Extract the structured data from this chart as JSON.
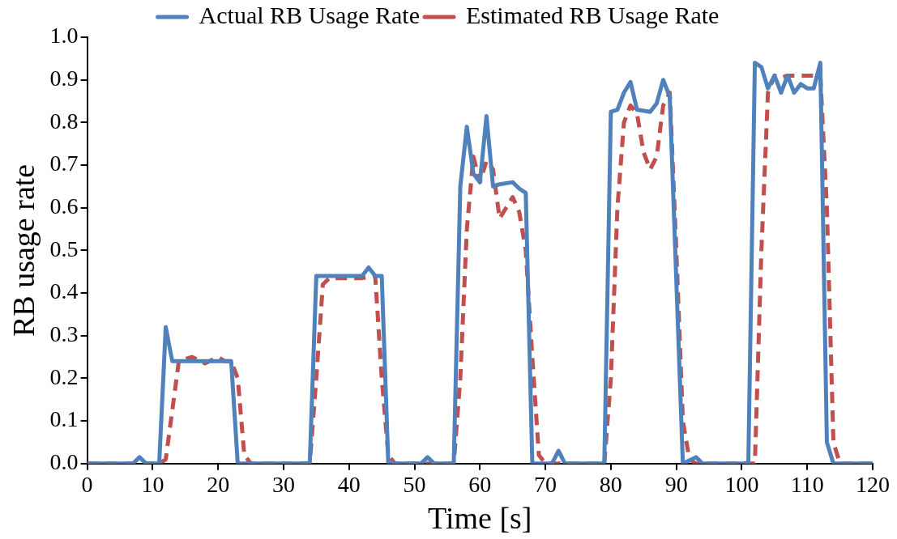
{
  "chart_data": {
    "type": "line",
    "xlabel": "Time [s]",
    "ylabel": "RB usage rate",
    "xlim": [
      0,
      120
    ],
    "xticks": [
      0,
      10,
      20,
      30,
      40,
      50,
      60,
      70,
      80,
      90,
      100,
      110,
      120
    ],
    "ylim": [
      0,
      1
    ],
    "yticks": [
      {
        "value": 0,
        "label": "0.0"
      },
      {
        "value": 0.1,
        "label": "0.1"
      },
      {
        "value": 0.2,
        "label": "0.2"
      },
      {
        "value": 0.3,
        "label": "0.3"
      },
      {
        "value": 0.4,
        "label": "0.4"
      },
      {
        "value": 0.5,
        "label": "0.5"
      },
      {
        "value": 0.6,
        "label": "0.6"
      },
      {
        "value": 0.7,
        "label": "0.7"
      },
      {
        "value": 0.8,
        "label": "0.8"
      },
      {
        "value": 0.9,
        "label": "0.9"
      },
      {
        "value": 1,
        "label": "1.0"
      }
    ],
    "grid": false,
    "legend": "top",
    "marker": "none",
    "series": [
      {
        "name": "Actual RB Usage Rate",
        "color": "#4f81bd",
        "line_style": "solid",
        "x": [
          0,
          7,
          8,
          9,
          11,
          12,
          13,
          22,
          23,
          34,
          35,
          38,
          42,
          43,
          44,
          45,
          46,
          51,
          52,
          53,
          56,
          57,
          58,
          59,
          60,
          61,
          62,
          63,
          65,
          66,
          67,
          68,
          71,
          72,
          73,
          79,
          80,
          81,
          82,
          83,
          84,
          86,
          87,
          88,
          89,
          91,
          93,
          94,
          101,
          102,
          103,
          104,
          105,
          106,
          107,
          108,
          109,
          110,
          111,
          112,
          113,
          114,
          120
        ],
        "values": [
          0,
          0,
          0.015,
          0,
          0,
          0.32,
          0.24,
          0.24,
          0,
          0,
          0.44,
          0.44,
          0.44,
          0.46,
          0.44,
          0.44,
          0,
          0,
          0.015,
          0,
          0,
          0.65,
          0.79,
          0.68,
          0.66,
          0.815,
          0.65,
          0.655,
          0.66,
          0.645,
          0.635,
          0,
          0,
          0.03,
          0,
          0,
          0.825,
          0.83,
          0.87,
          0.895,
          0.83,
          0.825,
          0.845,
          0.9,
          0.86,
          0,
          0.015,
          0,
          0,
          0.94,
          0.93,
          0.88,
          0.91,
          0.87,
          0.91,
          0.87,
          0.89,
          0.88,
          0.88,
          0.94,
          0.05,
          0,
          0
        ]
      },
      {
        "name": "Estimated RB Usage Rate",
        "color": "#c0504d",
        "line_style": "dashed",
        "x": [
          0,
          11,
          12,
          14,
          15,
          16,
          18,
          20,
          21,
          22,
          23,
          24,
          25,
          34,
          35,
          36,
          37,
          42,
          44,
          45,
          46,
          47,
          56,
          57,
          58,
          59,
          60,
          61,
          62,
          63,
          64,
          65,
          66,
          67,
          68,
          69,
          70,
          79,
          80,
          81,
          82,
          83,
          84,
          85,
          86,
          87,
          88,
          89,
          90,
          91,
          92,
          93,
          102,
          103,
          104,
          105,
          106,
          107,
          112,
          113,
          114,
          115,
          120
        ],
        "values": [
          0,
          0,
          0.01,
          0.24,
          0.245,
          0.25,
          0.235,
          0.25,
          0.24,
          0.24,
          0.2,
          0.02,
          0,
          0,
          0.2,
          0.42,
          0.435,
          0.435,
          0.44,
          0.2,
          0.02,
          0,
          0,
          0.2,
          0.55,
          0.72,
          0.66,
          0.71,
          0.69,
          0.575,
          0.6,
          0.625,
          0.59,
          0.5,
          0.25,
          0.02,
          0,
          0,
          0.2,
          0.6,
          0.8,
          0.84,
          0.82,
          0.73,
          0.69,
          0.72,
          0.84,
          0.87,
          0.5,
          0.1,
          0.01,
          0,
          0,
          0.5,
          0.87,
          0.91,
          0.905,
          0.91,
          0.91,
          0.6,
          0.05,
          0,
          0
        ]
      }
    ]
  }
}
